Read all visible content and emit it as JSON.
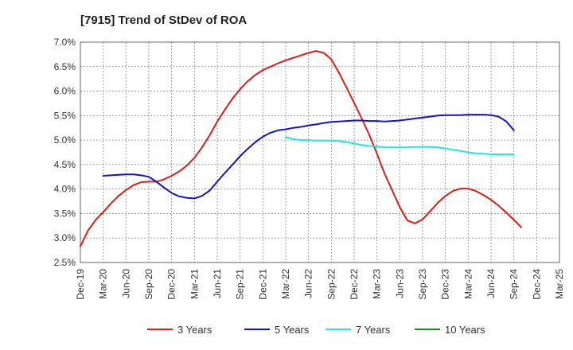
{
  "chart_data": {
    "type": "line",
    "title": "[7915]  Trend of StDev of ROA",
    "xlabel": "",
    "ylabel": "",
    "ylim": [
      2.5,
      7.0
    ],
    "yticks": [
      "7.0%",
      "6.5%",
      "6.0%",
      "5.5%",
      "5.0%",
      "4.5%",
      "4.0%",
      "3.5%",
      "3.0%",
      "2.5%"
    ],
    "ytick_values": [
      7.0,
      6.5,
      6.0,
      5.5,
      5.0,
      4.5,
      4.0,
      3.5,
      3.0,
      2.5
    ],
    "categories": [
      "Dec-19",
      "Mar-20",
      "Jun-20",
      "Sep-20",
      "Dec-20",
      "Mar-21",
      "Jun-21",
      "Sep-21",
      "Dec-21",
      "Mar-22",
      "Jun-22",
      "Sep-22",
      "Dec-22",
      "Mar-23",
      "Jun-23",
      "Sep-23",
      "Dec-23",
      "Mar-24",
      "Jun-24",
      "Sep-24",
      "Dec-24",
      "Mar-25"
    ],
    "grid": true,
    "legend_position": "bottom",
    "series": [
      {
        "name": "3 Years",
        "color": "#dd1c1c",
        "points": [
          [
            0,
            2.83
          ],
          [
            0.33,
            3.15
          ],
          [
            0.67,
            3.37
          ],
          [
            1,
            3.53
          ],
          [
            1.33,
            3.7
          ],
          [
            1.67,
            3.86
          ],
          [
            2,
            3.98
          ],
          [
            2.33,
            4.08
          ],
          [
            2.67,
            4.14
          ],
          [
            3,
            4.15
          ],
          [
            3.33,
            4.15
          ],
          [
            3.67,
            4.2
          ],
          [
            4,
            4.27
          ],
          [
            4.33,
            4.36
          ],
          [
            4.67,
            4.48
          ],
          [
            5,
            4.64
          ],
          [
            5.33,
            4.85
          ],
          [
            5.67,
            5.1
          ],
          [
            6,
            5.38
          ],
          [
            6.33,
            5.62
          ],
          [
            6.67,
            5.85
          ],
          [
            7,
            6.04
          ],
          [
            7.33,
            6.2
          ],
          [
            7.67,
            6.33
          ],
          [
            8,
            6.43
          ],
          [
            8.33,
            6.5
          ],
          [
            8.67,
            6.57
          ],
          [
            9,
            6.63
          ],
          [
            9.33,
            6.68
          ],
          [
            9.67,
            6.73
          ],
          [
            10,
            6.78
          ],
          [
            10.33,
            6.82
          ],
          [
            10.67,
            6.78
          ],
          [
            11,
            6.65
          ],
          [
            11.33,
            6.38
          ],
          [
            11.67,
            6.07
          ],
          [
            12,
            5.76
          ],
          [
            12.33,
            5.44
          ],
          [
            12.67,
            5.1
          ],
          [
            13,
            4.72
          ],
          [
            13.33,
            4.32
          ],
          [
            13.67,
            3.97
          ],
          [
            14,
            3.63
          ],
          [
            14.33,
            3.36
          ],
          [
            14.67,
            3.3
          ],
          [
            15,
            3.38
          ],
          [
            15.33,
            3.55
          ],
          [
            15.67,
            3.72
          ],
          [
            16,
            3.86
          ],
          [
            16.33,
            3.96
          ],
          [
            16.67,
            4.01
          ],
          [
            17,
            4.01
          ],
          [
            17.33,
            3.96
          ],
          [
            17.67,
            3.88
          ],
          [
            18,
            3.78
          ],
          [
            18.33,
            3.66
          ],
          [
            18.67,
            3.52
          ],
          [
            19,
            3.37
          ],
          [
            19.33,
            3.22
          ]
        ]
      },
      {
        "name": "5 Years",
        "color": "#1515c8",
        "points": [
          [
            1,
            4.27
          ],
          [
            1.33,
            4.28
          ],
          [
            1.67,
            4.29
          ],
          [
            2,
            4.3
          ],
          [
            2.33,
            4.3
          ],
          [
            2.67,
            4.28
          ],
          [
            3,
            4.25
          ],
          [
            3.33,
            4.15
          ],
          [
            3.67,
            4.03
          ],
          [
            4,
            3.92
          ],
          [
            4.33,
            3.85
          ],
          [
            4.67,
            3.82
          ],
          [
            5,
            3.81
          ],
          [
            5.33,
            3.86
          ],
          [
            5.67,
            3.97
          ],
          [
            6,
            4.15
          ],
          [
            6.33,
            4.33
          ],
          [
            6.67,
            4.5
          ],
          [
            7,
            4.67
          ],
          [
            7.33,
            4.82
          ],
          [
            7.67,
            4.96
          ],
          [
            8,
            5.07
          ],
          [
            8.33,
            5.15
          ],
          [
            8.67,
            5.2
          ],
          [
            9,
            5.22
          ],
          [
            9.33,
            5.25
          ],
          [
            9.67,
            5.27
          ],
          [
            10,
            5.3
          ],
          [
            10.33,
            5.32
          ],
          [
            10.67,
            5.35
          ],
          [
            11,
            5.37
          ],
          [
            11.33,
            5.38
          ],
          [
            11.67,
            5.39
          ],
          [
            12,
            5.4
          ],
          [
            12.33,
            5.4
          ],
          [
            12.67,
            5.39
          ],
          [
            13,
            5.39
          ],
          [
            13.33,
            5.38
          ],
          [
            13.67,
            5.39
          ],
          [
            14,
            5.4
          ],
          [
            14.33,
            5.42
          ],
          [
            14.67,
            5.44
          ],
          [
            15,
            5.46
          ],
          [
            15.33,
            5.48
          ],
          [
            15.67,
            5.5
          ],
          [
            16,
            5.51
          ],
          [
            16.33,
            5.51
          ],
          [
            16.67,
            5.51
          ],
          [
            17,
            5.52
          ],
          [
            17.33,
            5.52
          ],
          [
            17.67,
            5.52
          ],
          [
            18,
            5.51
          ],
          [
            18.33,
            5.48
          ],
          [
            18.67,
            5.38
          ],
          [
            19,
            5.2
          ]
        ]
      },
      {
        "name": "7 Years",
        "color": "#22e5e5",
        "points": [
          [
            9,
            5.06
          ],
          [
            9.33,
            5.02
          ],
          [
            9.67,
            5.0
          ],
          [
            10,
            5.0
          ],
          [
            10.33,
            4.99
          ],
          [
            10.67,
            4.99
          ],
          [
            11,
            4.99
          ],
          [
            11.33,
            4.98
          ],
          [
            11.67,
            4.96
          ],
          [
            12,
            4.93
          ],
          [
            12.33,
            4.9
          ],
          [
            12.67,
            4.88
          ],
          [
            13,
            4.87
          ],
          [
            13.33,
            4.85
          ],
          [
            13.67,
            4.85
          ],
          [
            14,
            4.85
          ],
          [
            14.33,
            4.85
          ],
          [
            14.67,
            4.86
          ],
          [
            15,
            4.86
          ],
          [
            15.33,
            4.86
          ],
          [
            15.67,
            4.85
          ],
          [
            16,
            4.83
          ],
          [
            16.33,
            4.8
          ],
          [
            16.67,
            4.78
          ],
          [
            17,
            4.75
          ],
          [
            17.33,
            4.73
          ],
          [
            17.67,
            4.72
          ],
          [
            18,
            4.71
          ],
          [
            18.33,
            4.71
          ],
          [
            18.67,
            4.71
          ],
          [
            19,
            4.71
          ]
        ]
      },
      {
        "name": "10 Years",
        "color": "#1e8c1e",
        "points": []
      }
    ]
  }
}
